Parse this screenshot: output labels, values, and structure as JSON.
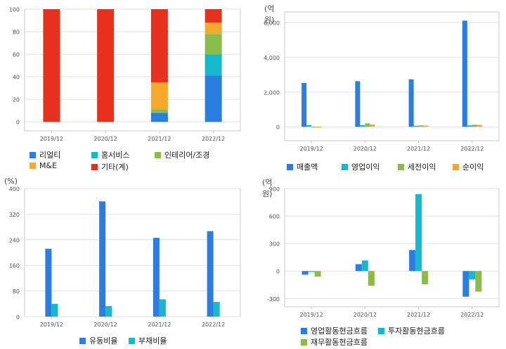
{
  "colors": {
    "grid": "#e2e2e2",
    "frame": "#c8c8c8",
    "axis_text": "#555555"
  },
  "chart_data": [
    {
      "id": "c1",
      "type": "bar",
      "stacked": true,
      "unit": "",
      "categories": [
        "2019/12",
        "2020/12",
        "2021/12",
        "2022/12"
      ],
      "yticks": [
        0,
        20,
        40,
        60,
        80,
        100
      ],
      "ylim": [
        -8,
        100
      ],
      "series": [
        {
          "name": "리얼티",
          "color": "#2b7de0",
          "values": [
            0,
            0,
            8,
            41
          ]
        },
        {
          "name": "홈서비스",
          "color": "#18b8cc",
          "values": [
            0,
            0,
            0,
            19
          ]
        },
        {
          "name": "인테리어/조경",
          "color": "#8bbb4a",
          "values": [
            0,
            0,
            3,
            18
          ]
        },
        {
          "name": "M&E",
          "color": "#f4a92a",
          "values": [
            0,
            0,
            24,
            10
          ]
        },
        {
          "name": "기타(계)",
          "color": "#e8301e",
          "values": [
            100,
            100,
            65,
            12
          ]
        }
      ],
      "legend_rows": [
        [
          0,
          1,
          2
        ],
        [
          3,
          4
        ]
      ],
      "grid": true
    },
    {
      "id": "c2",
      "type": "bar",
      "stacked": false,
      "unit": "(억원)",
      "categories": [
        "2019/12",
        "2020/12",
        "2021/12",
        "2022/12"
      ],
      "yticks": [
        0,
        2000,
        4000,
        6000
      ],
      "ytick_labels": [
        "0",
        "2,000",
        "4,000",
        "6,000"
      ],
      "ylim": [
        -800,
        6600
      ],
      "series": [
        {
          "name": "매출액",
          "color": "#2b7de0",
          "values": [
            2520,
            2620,
            2730,
            6100
          ]
        },
        {
          "name": "영업이익",
          "color": "#18b8cc",
          "values": [
            100,
            90,
            60,
            80
          ]
        },
        {
          "name": "세전이익",
          "color": "#8bbb4a",
          "values": [
            -40,
            200,
            80,
            120
          ]
        },
        {
          "name": "순이익",
          "color": "#f4a92a",
          "values": [
            -50,
            130,
            70,
            110
          ]
        }
      ],
      "legend_rows": [
        [
          0,
          1,
          2,
          3
        ]
      ],
      "grid": true
    },
    {
      "id": "c3",
      "type": "bar",
      "stacked": false,
      "unit": "(%)",
      "categories": [
        "2019/12",
        "2020/12",
        "2021/12",
        "2022/12"
      ],
      "yticks": [
        0,
        80,
        160,
        240,
        320,
        400
      ],
      "ylim": [
        0,
        400
      ],
      "series": [
        {
          "name": "유동비율",
          "color": "#2b7de0",
          "values": [
            212,
            360,
            246,
            267
          ]
        },
        {
          "name": "부채비율",
          "color": "#18b8cc",
          "values": [
            40,
            33,
            54,
            46
          ]
        }
      ],
      "legend_rows": [
        [
          0,
          1
        ]
      ],
      "grid": true
    },
    {
      "id": "c4",
      "type": "bar",
      "stacked": false,
      "unit": "(억원)",
      "categories": [
        "2019/12",
        "2020/12",
        "2021/12",
        "2022/12"
      ],
      "yticks": [
        -300,
        0,
        300,
        600,
        900
      ],
      "ylim": [
        -390,
        900
      ],
      "series": [
        {
          "name": "영업활동현금흐름",
          "color": "#2b7de0",
          "values": [
            -40,
            75,
            230,
            -280
          ]
        },
        {
          "name": "투자활동현금흐름",
          "color": "#18b8cc",
          "values": [
            -10,
            115,
            840,
            -90
          ]
        },
        {
          "name": "재무활동현금흐름",
          "color": "#8bbb4a",
          "values": [
            -60,
            -160,
            -145,
            -225
          ]
        }
      ],
      "legend_rows": [
        [
          0,
          1
        ],
        [
          2
        ]
      ],
      "grid": true
    }
  ]
}
